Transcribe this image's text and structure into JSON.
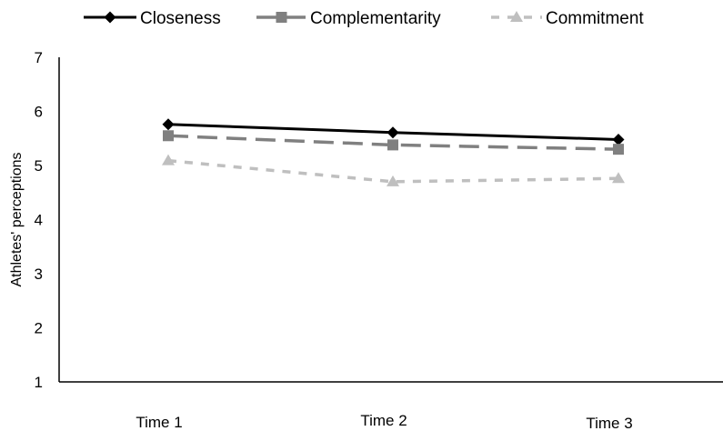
{
  "chart_data": {
    "type": "line",
    "categories": [
      "Time 1",
      "Time 2",
      "Time 3"
    ],
    "ylabel": "Athletes' perceptions",
    "xlabel": "",
    "title": "",
    "ylim": [
      1,
      7
    ],
    "yticks": [
      "1",
      "2",
      "3",
      "4",
      "5",
      "6",
      "7"
    ],
    "grid": false,
    "legend_position": "top",
    "series": [
      {
        "name": "Closeness",
        "values": [
          5.76,
          5.61,
          5.48
        ],
        "color": "#000000",
        "marker": "diamond",
        "line": "solid"
      },
      {
        "name": "Complementarity",
        "values": [
          5.55,
          5.38,
          5.3
        ],
        "color": "#808080",
        "marker": "square",
        "line": "dashed"
      },
      {
        "name": "Commitment",
        "values": [
          5.09,
          4.7,
          4.76
        ],
        "color": "#bfbfbf",
        "marker": "triangle",
        "line": "dashed"
      }
    ]
  }
}
